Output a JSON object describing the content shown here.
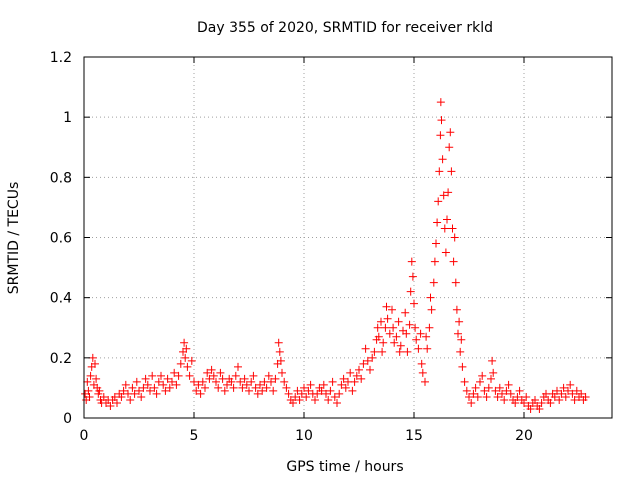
{
  "chart_data": {
    "type": "scatter",
    "title": "Day 355 of 2020, SRMTID for receiver rkld",
    "xlabel": "GPS time / hours",
    "ylabel": "SRMTID / TECUs",
    "xlim": [
      0,
      24
    ],
    "ylim": [
      0,
      1.2
    ],
    "x_ticks": [
      0,
      5,
      10,
      15,
      20
    ],
    "x_tick_labels": [
      "0",
      "5",
      "10",
      "15",
      "20"
    ],
    "y_ticks": [
      0,
      0.2,
      0.4,
      0.6,
      0.8,
      1.0,
      1.2
    ],
    "y_tick_labels": [
      "0",
      "0.2",
      "0.4",
      "0.6",
      "0.8",
      "1",
      "1.2"
    ],
    "grid": true,
    "marker": "+",
    "series": [
      {
        "name": "rkld",
        "color": "#ff0000",
        "points": [
          [
            0.05,
            0.08
          ],
          [
            0.1,
            0.06
          ],
          [
            0.15,
            0.12
          ],
          [
            0.2,
            0.09
          ],
          [
            0.25,
            0.07
          ],
          [
            0.3,
            0.14
          ],
          [
            0.35,
            0.17
          ],
          [
            0.4,
            0.2
          ],
          [
            0.45,
            0.11
          ],
          [
            0.5,
            0.18
          ],
          [
            0.55,
            0.13
          ],
          [
            0.6,
            0.1
          ],
          [
            0.65,
            0.08
          ],
          [
            0.7,
            0.09
          ],
          [
            0.75,
            0.06
          ],
          [
            0.8,
            0.05
          ],
          [
            0.9,
            0.07
          ],
          [
            1.0,
            0.05
          ],
          [
            1.1,
            0.06
          ],
          [
            1.2,
            0.04
          ],
          [
            1.3,
            0.06
          ],
          [
            1.4,
            0.07
          ],
          [
            1.5,
            0.05
          ],
          [
            1.6,
            0.08
          ],
          [
            1.7,
            0.07
          ],
          [
            1.8,
            0.09
          ],
          [
            1.9,
            0.11
          ],
          [
            2.0,
            0.08
          ],
          [
            2.1,
            0.06
          ],
          [
            2.2,
            0.1
          ],
          [
            2.3,
            0.08
          ],
          [
            2.4,
            0.12
          ],
          [
            2.5,
            0.09
          ],
          [
            2.6,
            0.07
          ],
          [
            2.7,
            0.1
          ],
          [
            2.8,
            0.13
          ],
          [
            2.9,
            0.11
          ],
          [
            3.0,
            0.09
          ],
          [
            3.1,
            0.14
          ],
          [
            3.2,
            0.1
          ],
          [
            3.3,
            0.08
          ],
          [
            3.4,
            0.12
          ],
          [
            3.5,
            0.14
          ],
          [
            3.6,
            0.11
          ],
          [
            3.7,
            0.09
          ],
          [
            3.8,
            0.13
          ],
          [
            3.9,
            0.1
          ],
          [
            4.0,
            0.12
          ],
          [
            4.1,
            0.15
          ],
          [
            4.2,
            0.11
          ],
          [
            4.3,
            0.14
          ],
          [
            4.4,
            0.18
          ],
          [
            4.5,
            0.22
          ],
          [
            4.55,
            0.25
          ],
          [
            4.6,
            0.2
          ],
          [
            4.65,
            0.23
          ],
          [
            4.7,
            0.17
          ],
          [
            4.8,
            0.14
          ],
          [
            4.9,
            0.19
          ],
          [
            5.0,
            0.12
          ],
          [
            5.1,
            0.09
          ],
          [
            5.2,
            0.11
          ],
          [
            5.3,
            0.08
          ],
          [
            5.4,
            0.12
          ],
          [
            5.5,
            0.1
          ],
          [
            5.6,
            0.15
          ],
          [
            5.7,
            0.13
          ],
          [
            5.8,
            0.16
          ],
          [
            5.9,
            0.14
          ],
          [
            6.0,
            0.12
          ],
          [
            6.1,
            0.1
          ],
          [
            6.2,
            0.15
          ],
          [
            6.3,
            0.13
          ],
          [
            6.4,
            0.09
          ],
          [
            6.5,
            0.11
          ],
          [
            6.6,
            0.13
          ],
          [
            6.7,
            0.12
          ],
          [
            6.8,
            0.1
          ],
          [
            6.9,
            0.14
          ],
          [
            7.0,
            0.17
          ],
          [
            7.1,
            0.12
          ],
          [
            7.2,
            0.1
          ],
          [
            7.3,
            0.13
          ],
          [
            7.4,
            0.11
          ],
          [
            7.5,
            0.09
          ],
          [
            7.6,
            0.12
          ],
          [
            7.7,
            0.14
          ],
          [
            7.8,
            0.1
          ],
          [
            7.9,
            0.08
          ],
          [
            8.0,
            0.11
          ],
          [
            8.1,
            0.09
          ],
          [
            8.2,
            0.12
          ],
          [
            8.3,
            0.1
          ],
          [
            8.4,
            0.14
          ],
          [
            8.5,
            0.12
          ],
          [
            8.6,
            0.09
          ],
          [
            8.7,
            0.13
          ],
          [
            8.8,
            0.18
          ],
          [
            8.85,
            0.25
          ],
          [
            8.9,
            0.22
          ],
          [
            8.95,
            0.19
          ],
          [
            9.0,
            0.15
          ],
          [
            9.1,
            0.12
          ],
          [
            9.2,
            0.1
          ],
          [
            9.3,
            0.08
          ],
          [
            9.4,
            0.06
          ],
          [
            9.5,
            0.05
          ],
          [
            9.6,
            0.07
          ],
          [
            9.7,
            0.09
          ],
          [
            9.8,
            0.06
          ],
          [
            9.9,
            0.08
          ],
          [
            10.0,
            0.1
          ],
          [
            10.1,
            0.07
          ],
          [
            10.2,
            0.09
          ],
          [
            10.3,
            0.11
          ],
          [
            10.4,
            0.08
          ],
          [
            10.5,
            0.06
          ],
          [
            10.6,
            0.08
          ],
          [
            10.7,
            0.1
          ],
          [
            10.8,
            0.09
          ],
          [
            10.9,
            0.11
          ],
          [
            11.0,
            0.08
          ],
          [
            11.1,
            0.06
          ],
          [
            11.2,
            0.09
          ],
          [
            11.3,
            0.12
          ],
          [
            11.4,
            0.07
          ],
          [
            11.5,
            0.05
          ],
          [
            11.6,
            0.08
          ],
          [
            11.7,
            0.11
          ],
          [
            11.8,
            0.13
          ],
          [
            11.9,
            0.1
          ],
          [
            12.0,
            0.12
          ],
          [
            12.1,
            0.15
          ],
          [
            12.2,
            0.09
          ],
          [
            12.3,
            0.12
          ],
          [
            12.4,
            0.14
          ],
          [
            12.5,
            0.16
          ],
          [
            12.6,
            0.13
          ],
          [
            12.7,
            0.18
          ],
          [
            12.8,
            0.23
          ],
          [
            12.9,
            0.19
          ],
          [
            13.0,
            0.16
          ],
          [
            13.1,
            0.2
          ],
          [
            13.2,
            0.22
          ],
          [
            13.3,
            0.26
          ],
          [
            13.35,
            0.3
          ],
          [
            13.4,
            0.27
          ],
          [
            13.5,
            0.32
          ],
          [
            13.55,
            0.22
          ],
          [
            13.6,
            0.25
          ],
          [
            13.7,
            0.3
          ],
          [
            13.75,
            0.37
          ],
          [
            13.8,
            0.33
          ],
          [
            13.9,
            0.28
          ],
          [
            14.0,
            0.36
          ],
          [
            14.05,
            0.3
          ],
          [
            14.1,
            0.25
          ],
          [
            14.2,
            0.27
          ],
          [
            14.3,
            0.32
          ],
          [
            14.35,
            0.22
          ],
          [
            14.4,
            0.24
          ],
          [
            14.5,
            0.29
          ],
          [
            14.6,
            0.35
          ],
          [
            14.65,
            0.28
          ],
          [
            14.7,
            0.22
          ],
          [
            14.8,
            0.31
          ],
          [
            14.85,
            0.42
          ],
          [
            14.9,
            0.52
          ],
          [
            14.95,
            0.47
          ],
          [
            15.0,
            0.38
          ],
          [
            15.05,
            0.3
          ],
          [
            15.1,
            0.26
          ],
          [
            15.2,
            0.23
          ],
          [
            15.3,
            0.28
          ],
          [
            15.35,
            0.18
          ],
          [
            15.4,
            0.15
          ],
          [
            15.5,
            0.12
          ],
          [
            15.55,
            0.27
          ],
          [
            15.6,
            0.23
          ],
          [
            15.7,
            0.3
          ],
          [
            15.75,
            0.4
          ],
          [
            15.8,
            0.36
          ],
          [
            15.9,
            0.45
          ],
          [
            15.95,
            0.52
          ],
          [
            16.0,
            0.58
          ],
          [
            16.05,
            0.65
          ],
          [
            16.1,
            0.72
          ],
          [
            16.15,
            0.82
          ],
          [
            16.2,
            0.94
          ],
          [
            16.22,
            1.05
          ],
          [
            16.25,
            0.99
          ],
          [
            16.3,
            0.86
          ],
          [
            16.35,
            0.74
          ],
          [
            16.4,
            0.63
          ],
          [
            16.45,
            0.55
          ],
          [
            16.5,
            0.66
          ],
          [
            16.55,
            0.75
          ],
          [
            16.6,
            0.9
          ],
          [
            16.65,
            0.95
          ],
          [
            16.7,
            0.82
          ],
          [
            16.75,
            0.63
          ],
          [
            16.8,
            0.52
          ],
          [
            16.85,
            0.6
          ],
          [
            16.9,
            0.45
          ],
          [
            16.95,
            0.36
          ],
          [
            17.0,
            0.28
          ],
          [
            17.05,
            0.32
          ],
          [
            17.1,
            0.22
          ],
          [
            17.15,
            0.26
          ],
          [
            17.2,
            0.17
          ],
          [
            17.3,
            0.12
          ],
          [
            17.4,
            0.09
          ],
          [
            17.5,
            0.07
          ],
          [
            17.6,
            0.05
          ],
          [
            17.7,
            0.08
          ],
          [
            17.8,
            0.1
          ],
          [
            17.9,
            0.07
          ],
          [
            18.0,
            0.12
          ],
          [
            18.1,
            0.14
          ],
          [
            18.2,
            0.09
          ],
          [
            18.3,
            0.07
          ],
          [
            18.4,
            0.1
          ],
          [
            18.5,
            0.13
          ],
          [
            18.55,
            0.19
          ],
          [
            18.6,
            0.15
          ],
          [
            18.7,
            0.09
          ],
          [
            18.8,
            0.07
          ],
          [
            18.9,
            0.1
          ],
          [
            19.0,
            0.08
          ],
          [
            19.1,
            0.06
          ],
          [
            19.2,
            0.09
          ],
          [
            19.3,
            0.11
          ],
          [
            19.4,
            0.08
          ],
          [
            19.5,
            0.06
          ],
          [
            19.6,
            0.05
          ],
          [
            19.7,
            0.07
          ],
          [
            19.8,
            0.09
          ],
          [
            19.9,
            0.06
          ],
          [
            20.0,
            0.05
          ],
          [
            20.1,
            0.07
          ],
          [
            20.2,
            0.04
          ],
          [
            20.3,
            0.03
          ],
          [
            20.4,
            0.05
          ],
          [
            20.5,
            0.06
          ],
          [
            20.6,
            0.04
          ],
          [
            20.7,
            0.03
          ],
          [
            20.8,
            0.05
          ],
          [
            20.9,
            0.07
          ],
          [
            21.0,
            0.08
          ],
          [
            21.1,
            0.06
          ],
          [
            21.2,
            0.05
          ],
          [
            21.3,
            0.08
          ],
          [
            21.4,
            0.07
          ],
          [
            21.5,
            0.09
          ],
          [
            21.6,
            0.06
          ],
          [
            21.7,
            0.08
          ],
          [
            21.8,
            0.1
          ],
          [
            21.9,
            0.07
          ],
          [
            22.0,
            0.09
          ],
          [
            22.1,
            0.11
          ],
          [
            22.2,
            0.08
          ],
          [
            22.3,
            0.06
          ],
          [
            22.4,
            0.09
          ],
          [
            22.5,
            0.07
          ],
          [
            22.6,
            0.08
          ],
          [
            22.7,
            0.06
          ],
          [
            22.8,
            0.07
          ]
        ]
      }
    ]
  }
}
